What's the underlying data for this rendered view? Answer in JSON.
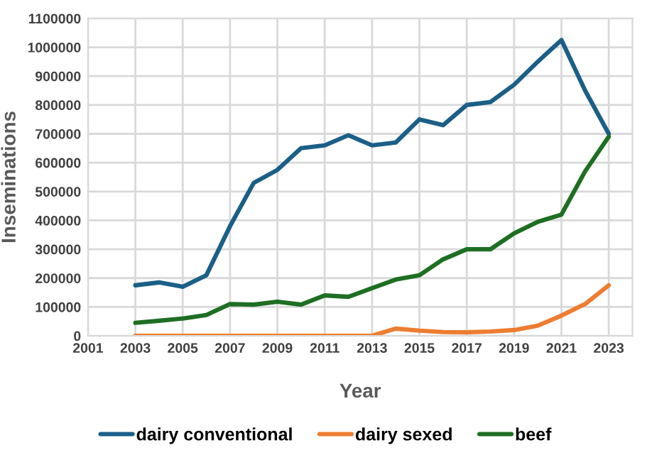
{
  "chart_data": {
    "type": "line",
    "xlabel": "Year",
    "ylabel": "Inseminations",
    "x": [
      2003,
      2004,
      2005,
      2006,
      2007,
      2008,
      2009,
      2010,
      2011,
      2012,
      2013,
      2014,
      2015,
      2016,
      2017,
      2018,
      2019,
      2020,
      2021,
      2022,
      2023
    ],
    "series": [
      {
        "name": "dairy conventional",
        "color": "#1b5f87",
        "values": [
          175000,
          185000,
          170000,
          210000,
          380000,
          530000,
          575000,
          650000,
          660000,
          695000,
          660000,
          670000,
          750000,
          730000,
          800000,
          810000,
          870000,
          950000,
          1025000,
          850000,
          700000
        ]
      },
      {
        "name": "dairy sexed",
        "color": "#ed7d31",
        "values": [
          0,
          0,
          0,
          0,
          0,
          0,
          0,
          0,
          0,
          0,
          0,
          25000,
          18000,
          13000,
          12000,
          15000,
          20000,
          35000,
          70000,
          110000,
          175000
        ]
      },
      {
        "name": "beef",
        "color": "#1e6e23",
        "values": [
          45000,
          52000,
          60000,
          72000,
          110000,
          108000,
          118000,
          108000,
          140000,
          135000,
          165000,
          195000,
          210000,
          265000,
          300000,
          300000,
          355000,
          395000,
          420000,
          570000,
          690000
        ]
      }
    ],
    "xlim": [
      2001,
      2024
    ],
    "xticks": [
      2001,
      2003,
      2005,
      2007,
      2009,
      2011,
      2013,
      2015,
      2017,
      2019,
      2021,
      2023
    ],
    "ylim": [
      0,
      1100000
    ],
    "yticks": [
      0,
      100000,
      200000,
      300000,
      400000,
      500000,
      600000,
      700000,
      800000,
      900000,
      1000000,
      1100000
    ],
    "grid": true,
    "legend": "bottom",
    "marker": "none",
    "line_style": "solid"
  }
}
